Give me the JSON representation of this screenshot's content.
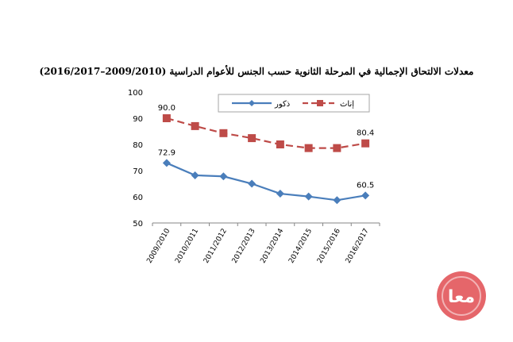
{
  "chart_data": {
    "type": "line",
    "title": "معدلات الالتحاق الإجمالية في المرحلة الثانوية حسب الجنس للأعوام الدراسية  (2009/2010–2016/2017)",
    "xlabel": "",
    "ylabel": "",
    "categories": [
      "2009/2010",
      "2010/2011",
      "2011/2012",
      "2012/2013",
      "2013/2014",
      "2014/2015",
      "2015/2016",
      "2016/2017"
    ],
    "ylim": [
      50,
      100
    ],
    "yticks": [
      50,
      60,
      70,
      80,
      90,
      100
    ],
    "grid": false,
    "legend": "top-right",
    "series": [
      {
        "name": "ذكور",
        "values": [
          72.9,
          68.2,
          67.8,
          65.0,
          61.2,
          60.1,
          58.7,
          60.5
        ],
        "color": "#4a7ebb",
        "dashed": false,
        "marker": "diamond",
        "labels": [
          {
            "index": 0,
            "text": "72.9"
          },
          {
            "index": 7,
            "text": "60.5"
          }
        ]
      },
      {
        "name": "إناث",
        "values": [
          90.0,
          87.0,
          84.3,
          82.4,
          80.0,
          78.6,
          78.6,
          80.4
        ],
        "color": "#be4b48",
        "dashed": true,
        "marker": "square",
        "labels": [
          {
            "index": 0,
            "text": "90.0"
          },
          {
            "index": 7,
            "text": "80.4"
          }
        ]
      }
    ]
  },
  "logo": {
    "text": "معا",
    "color": "#d9363e"
  }
}
